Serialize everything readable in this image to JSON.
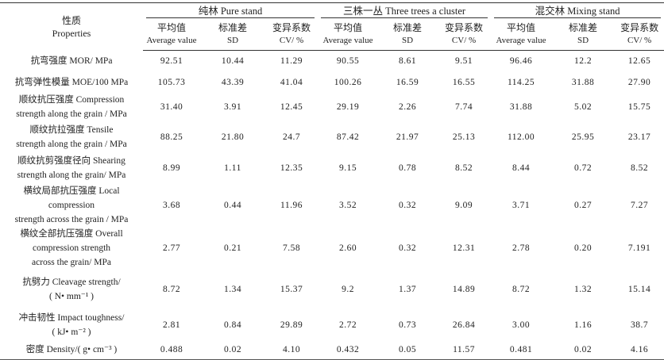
{
  "header": {
    "property_zh": "性质",
    "property_en": "Properties",
    "groups": [
      "纯林 Pure stand",
      "三株一丛 Three trees a cluster",
      "混交林 Mixing stand"
    ],
    "sub": [
      {
        "zh": "平均值",
        "en": "Average value"
      },
      {
        "zh": "标准差",
        "en": "SD"
      },
      {
        "zh": "变异系数",
        "en": "CV/ %"
      }
    ]
  },
  "rows": [
    {
      "l1": "抗弯强度 MOR/ MPa",
      "l2": "",
      "l3": "",
      "v": [
        "92.51",
        "10.44",
        "11.29",
        "90.55",
        "8.61",
        "9.51",
        "96.46",
        "12.2",
        "12.65"
      ]
    },
    {
      "l1": "抗弯弹性模量 MOE/100 MPa",
      "l2": "",
      "l3": "",
      "v": [
        "105.73",
        "43.39",
        "41.04",
        "100.26",
        "16.59",
        "16.55",
        "114.25",
        "31.88",
        "27.90"
      ]
    },
    {
      "l1": "顺纹抗压强度 Compression",
      "l2": "strength along the grain / MPa",
      "l3": "",
      "v": [
        "31.40",
        "3.91",
        "12.45",
        "29.19",
        "2.26",
        "7.74",
        "31.88",
        "5.02",
        "15.75"
      ]
    },
    {
      "l1": "顺纹抗拉强度 Tensile",
      "l2": "strength along the grain / MPa",
      "l3": "",
      "v": [
        "88.25",
        "21.80",
        "24.7",
        "87.42",
        "21.97",
        "25.13",
        "112.00",
        "25.95",
        "23.17"
      ]
    },
    {
      "l1": "顺纹抗剪强度径向 Shearing",
      "l2": "strength along the grain/ MPa",
      "l3": "",
      "v": [
        "8.99",
        "1.11",
        "12.35",
        "9.15",
        "0.78",
        "8.52",
        "8.44",
        "0.72",
        "8.52"
      ]
    },
    {
      "l1": "横纹局部抗压强度 Local compression",
      "l2": "strength across the grain / MPa",
      "l3": "",
      "v": [
        "3.68",
        "0.44",
        "11.96",
        "3.52",
        "0.32",
        "9.09",
        "3.71",
        "0.27",
        "7.27"
      ]
    },
    {
      "l1": "横纹全部抗压强度 Overall",
      "l2": "compression strength",
      "l3": "across the grain/ MPa",
      "v": [
        "2.77",
        "0.21",
        "7.58",
        "2.60",
        "0.32",
        "12.31",
        "2.78",
        "0.20",
        "7.191"
      ]
    },
    {
      "l1": "抗劈力 Cleavage strength/",
      "l2": "( N• mm⁻¹ )",
      "l3": "",
      "v": [
        "8.72",
        "1.34",
        "15.37",
        "9.2",
        "1.37",
        "14.89",
        "8.72",
        "1.32",
        "15.14"
      ]
    },
    {
      "l1": "冲击韧性 Impact toughness/",
      "l2": "( kJ• m⁻² )",
      "l3": "",
      "v": [
        "2.81",
        "0.84",
        "29.89",
        "2.72",
        "0.73",
        "26.84",
        "3.00",
        "1.16",
        "38.7"
      ]
    },
    {
      "l1": "密度 Density/( g• cm⁻³ )",
      "l2": "",
      "l3": "",
      "v": [
        "0.488",
        "0.02",
        "4.10",
        "0.432",
        "0.05",
        "11.57",
        "0.481",
        "0.02",
        "4.16"
      ]
    }
  ]
}
